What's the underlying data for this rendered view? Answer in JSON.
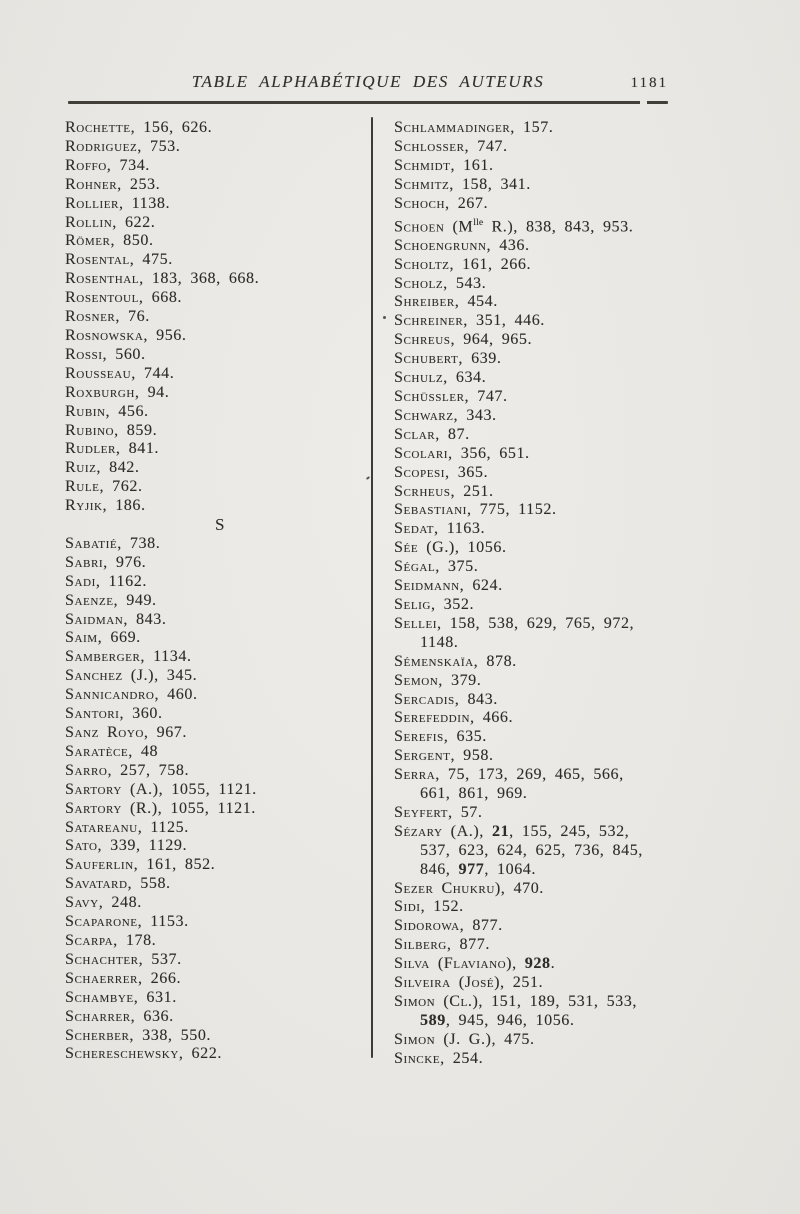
{
  "header": {
    "title": "TABLE ALPHABÉTIQUE DES AUTEURS",
    "page_number": "1181"
  },
  "index": {
    "left_column": [
      "Rochette, 156, 626.",
      "Rodriguez, 753.",
      "Roffo, 734.",
      "Rohner, 253.",
      "Rollier, 1138.",
      "Rollin, 622.",
      "Römer, 850.",
      "Rosental, 475.",
      "Rosenthal, 183, 368, 668.",
      "Rosentoul, 668.",
      "Rosner, 76.",
      "Rosnowska, 956.",
      "Rossi, 560.",
      "Rousseau, 744.",
      "Roxburgh, 94.",
      "Rubin, 456.",
      "Rubino, 859.",
      "Rudler, 841.",
      "Ruiz, 842.",
      "Rule, 762.",
      "Ryjik, 186.",
      {
        "section": "S"
      },
      "Sabatié, 738.",
      "Sabri, 976.",
      "Sadi, 1162.",
      "Saenze, 949.",
      "Saidman, 843.",
      "Saim, 669.",
      "Samberger, 1134.",
      "Sanchez (J.), 345.",
      "Sannicandro, 460.",
      "Santori, 360.",
      "Sanz Royo, 967.",
      "Saratèce, 48",
      "Sarro, 257, 758.",
      "Sartory (A.), 1055, 1121.",
      "Sartory (R.), 1055, 1121.",
      "Satareanu, 1125.",
      "Sato, 339, 1129.",
      "Sauferlin, 161, 852.",
      "Savatard, 558.",
      "Savy, 248.",
      "Scaparone, 1153.",
      "Scarpa, 178.",
      "Schachter, 537.",
      "Schaerrer, 266.",
      "Schambye, 631.",
      "Scharrer, 636.",
      "Scherber, 338, 550.",
      "Schereschewsky, 622."
    ],
    "right_column": [
      "Schlammadinger, 157.",
      "Schlosser, 747.",
      "Schmidt, 161.",
      "Schmitz, 158, 341.",
      "Schoch, 267.",
      {
        "segments": [
          {
            "t": "Schoen (M"
          },
          {
            "t": "lle",
            "sup": true
          },
          {
            "t": " R.), 838, 843, 953."
          }
        ]
      },
      "Schoengrunn, 436.",
      "Scholtz, 161, 266.",
      "Scholz, 543.",
      "Shreiber, 454.",
      "Schreiner, 351, 446.",
      "Schreus, 964, 965.",
      "Schubert, 639.",
      "Schulz, 634.",
      "Schüssler, 747.",
      "Schwarz, 343.",
      "Sclar, 87.",
      "Scolari, 356, 651.",
      "Scopesi, 365.",
      "Scrheus, 251.",
      "Sebastiani, 775, 1152.",
      "Sedat, 1163.",
      "Sée (G.), 1056.",
      "Ségal, 375.",
      "Seidmann, 624.",
      "Selig, 352.",
      {
        "segments": [
          {
            "t": "Sellei, 158, 538, 629, 765, 972,"
          },
          {
            "br": true
          },
          {
            "t": "1148."
          }
        ]
      },
      "Sémenskaïa, 878.",
      "Semon, 379.",
      "Sercadis, 843.",
      "Serefeddin, 466.",
      "Serefis, 635.",
      "Sergent, 958.",
      {
        "segments": [
          {
            "t": "Serra, 75, 173, 269, 465, 566,"
          },
          {
            "br": true
          },
          {
            "t": "661, 861, 969."
          }
        ]
      },
      "Seyfert, 57.",
      {
        "segments": [
          {
            "t": "Sézary (A.), "
          },
          {
            "t": "21",
            "b": true
          },
          {
            "t": ", 155, 245, 532,"
          },
          {
            "br": true
          },
          {
            "t": "537, 623, 624, 625, 736, 845,"
          },
          {
            "br": true
          },
          {
            "t": "846, "
          },
          {
            "t": "977",
            "b": true
          },
          {
            "t": ", 1064."
          }
        ]
      },
      "Sezer Chukru), 470.",
      "Sidi, 152.",
      "Sidorowa, 877.",
      "Silberg, 877.",
      {
        "segments": [
          {
            "t": "Silva (Flaviano), "
          },
          {
            "t": "928",
            "b": true
          },
          {
            "t": "."
          }
        ]
      },
      "Silveira (José), 251.",
      {
        "segments": [
          {
            "t": "Simon (Cl.), 151, 189, 531, 533,"
          },
          {
            "br": true
          },
          {
            "t": "589",
            "b": true
          },
          {
            "t": ", 945, 946, 1056."
          }
        ]
      },
      "Simon (J. G.), 475.",
      "Sincke, 254."
    ]
  }
}
